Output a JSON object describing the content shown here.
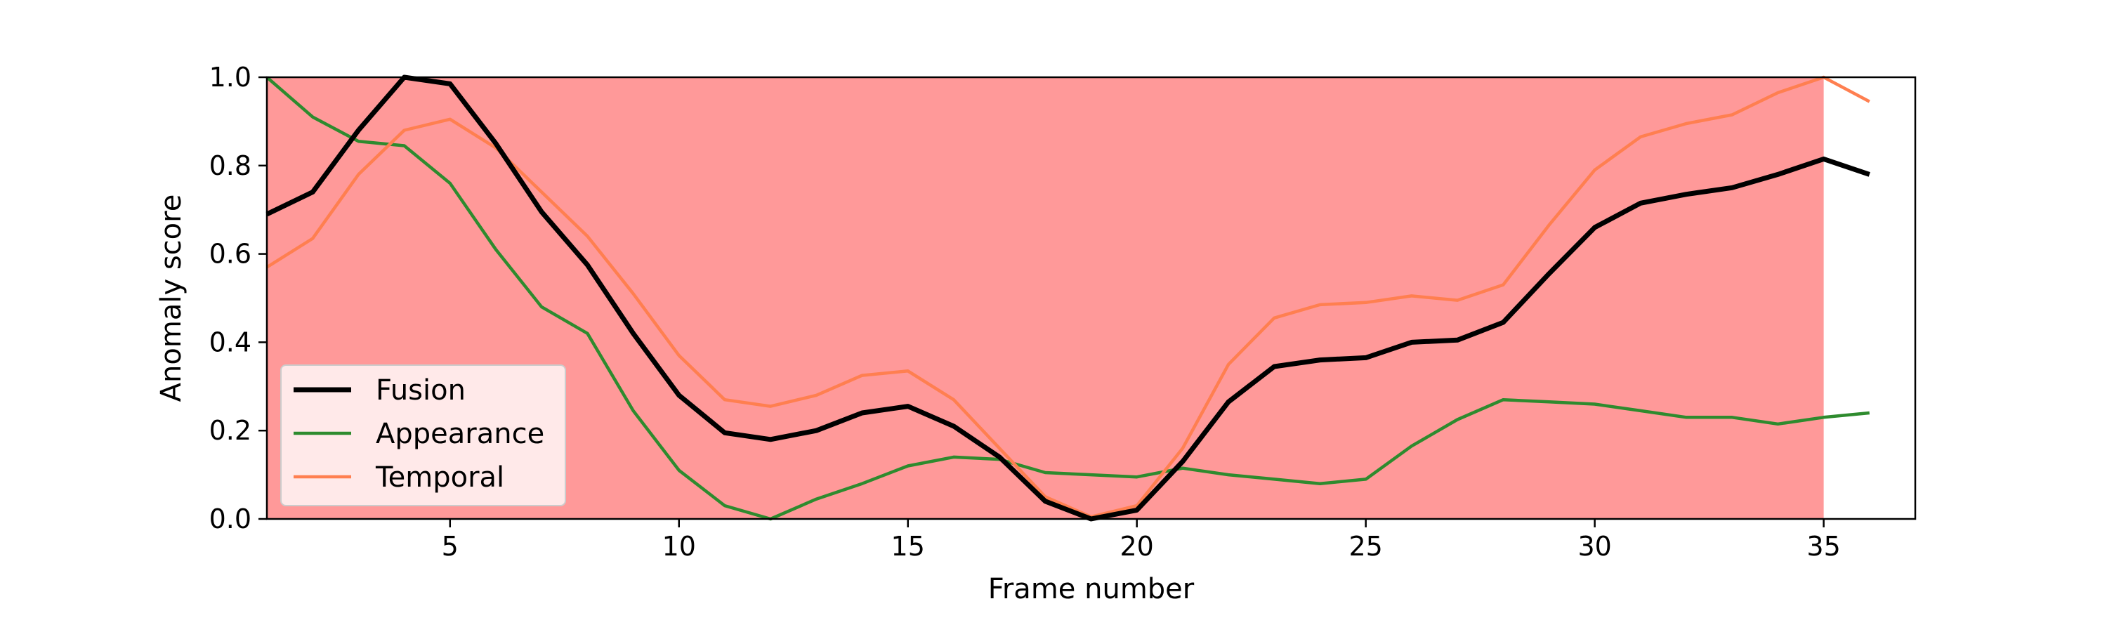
{
  "chart_data": {
    "type": "line",
    "title": "",
    "xlabel": "Frame number",
    "ylabel": "Anomaly score",
    "xlim": [
      1,
      37
    ],
    "ylim": [
      0,
      1.0
    ],
    "xticks": [
      5,
      10,
      15,
      20,
      25,
      30,
      35
    ],
    "yticks": [
      0.0,
      0.2,
      0.4,
      0.6,
      0.8,
      1.0
    ],
    "xtick_labels": [
      "5",
      "10",
      "15",
      "20",
      "25",
      "30",
      "35"
    ],
    "ytick_labels": [
      "0.0",
      "0.2",
      "0.4",
      "0.6",
      "0.8",
      "1.0"
    ],
    "grid": false,
    "legend_position": "lower-left",
    "anomaly_region": {
      "x_start": 1,
      "x_end": 35,
      "color": "#ff9999"
    },
    "x": [
      1,
      2,
      3,
      4,
      5,
      6,
      7,
      8,
      9,
      10,
      11,
      12,
      13,
      14,
      15,
      16,
      17,
      18,
      19,
      20,
      21,
      22,
      23,
      24,
      25,
      26,
      27,
      28,
      29,
      30,
      31,
      32,
      33,
      34,
      35,
      36
    ],
    "series": [
      {
        "name": "Fusion",
        "color": "#000000",
        "values": [
          0.69,
          0.74,
          0.88,
          1.0,
          0.985,
          0.85,
          0.695,
          0.575,
          0.42,
          0.28,
          0.195,
          0.18,
          0.2,
          0.24,
          0.255,
          0.21,
          0.14,
          0.04,
          0.0,
          0.02,
          0.13,
          0.265,
          0.345,
          0.36,
          0.365,
          0.4,
          0.405,
          0.445,
          0.555,
          0.66,
          0.715,
          0.735,
          0.75,
          0.78,
          0.815,
          0.78
        ]
      },
      {
        "name": "Appearance",
        "color": "#2e8b2e",
        "values": [
          1.0,
          0.91,
          0.855,
          0.845,
          0.76,
          0.61,
          0.48,
          0.42,
          0.245,
          0.11,
          0.03,
          0.0,
          0.045,
          0.08,
          0.12,
          0.14,
          0.135,
          0.105,
          0.1,
          0.095,
          0.115,
          0.1,
          0.09,
          0.08,
          0.09,
          0.165,
          0.225,
          0.27,
          0.265,
          0.26,
          0.245,
          0.23,
          0.23,
          0.215,
          0.23,
          0.24
        ]
      },
      {
        "name": "Temporal",
        "color": "#ff7f50",
        "values": [
          0.57,
          0.635,
          0.78,
          0.88,
          0.905,
          0.84,
          0.74,
          0.64,
          0.51,
          0.37,
          0.27,
          0.255,
          0.28,
          0.325,
          0.335,
          0.27,
          0.16,
          0.05,
          0.005,
          0.03,
          0.16,
          0.35,
          0.455,
          0.485,
          0.49,
          0.505,
          0.495,
          0.53,
          0.665,
          0.79,
          0.865,
          0.895,
          0.915,
          0.965,
          1.0,
          0.945
        ]
      }
    ]
  }
}
